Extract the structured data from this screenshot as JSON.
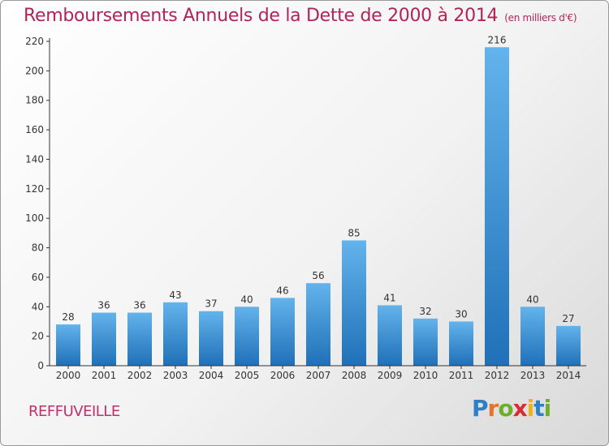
{
  "chart_data": {
    "type": "bar",
    "title": "Remboursements Annuels de la Dette de 2000 à 2014",
    "unit_label": "(en milliers d'€)",
    "categories": [
      "2000",
      "2001",
      "2002",
      "2003",
      "2004",
      "2005",
      "2006",
      "2007",
      "2008",
      "2009",
      "2010",
      "2011",
      "2012",
      "2013",
      "2014"
    ],
    "values": [
      28,
      36,
      36,
      43,
      37,
      40,
      46,
      56,
      85,
      41,
      32,
      30,
      216,
      40,
      27
    ],
    "xlabel": "",
    "ylabel": "",
    "ylim": [
      0,
      220
    ],
    "yticks": [
      0,
      20,
      40,
      60,
      80,
      100,
      120,
      140,
      160,
      180,
      200,
      220
    ],
    "grid": false,
    "colors": {
      "bar_top": "#63b3ec",
      "bar_bottom": "#1f70b8",
      "title": "#b0245a",
      "axis": "#333333"
    }
  },
  "footer": {
    "commune": "REFFUVEILLE",
    "logo_letters": [
      {
        "ch": "P",
        "color": "#2e7fc4"
      },
      {
        "ch": "r",
        "color": "#e8722a"
      },
      {
        "ch": "o",
        "color": "#6dad2f"
      },
      {
        "ch": "x",
        "color": "#d62e2e"
      },
      {
        "ch": "i",
        "color": "#f0b21c"
      },
      {
        "ch": "t",
        "color": "#2e7fc4"
      },
      {
        "ch": "i",
        "color": "#6dad2f"
      }
    ]
  }
}
